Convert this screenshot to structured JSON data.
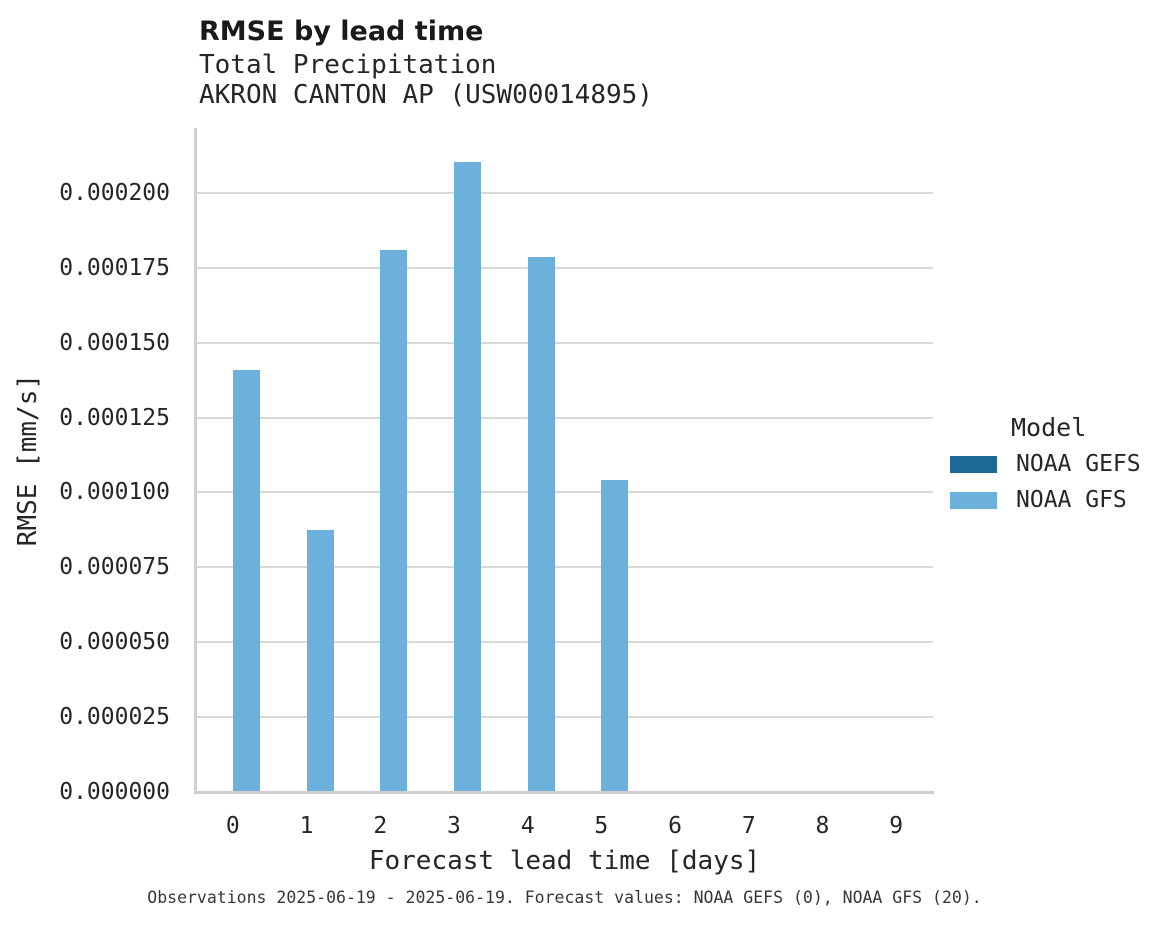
{
  "chart_data": {
    "type": "bar",
    "title": "RMSE by lead time",
    "subtitle": "Total Precipitation",
    "station": "AKRON CANTON AP (USW00014895)",
    "xlabel": "Forecast lead time [days]",
    "ylabel": "RMSE [mm/s]",
    "categories": [
      "0",
      "1",
      "2",
      "3",
      "4",
      "5",
      "6",
      "7",
      "8",
      "9"
    ],
    "series": [
      {
        "name": "NOAA GEFS",
        "color": "#1d6996",
        "values": [
          null,
          null,
          null,
          null,
          null,
          null,
          null,
          null,
          null,
          null
        ]
      },
      {
        "name": "NOAA GFS",
        "color": "#6cb0dc",
        "values": [
          0.0001407,
          8.71e-05,
          0.0001806,
          0.0002101,
          0.0001782,
          0.0001038,
          null,
          null,
          null,
          null
        ]
      }
    ],
    "ylim": [
      0,
      0.0002217
    ],
    "yticks": [
      "0.000000",
      "0.000025",
      "0.000050",
      "0.000075",
      "0.000100",
      "0.000125",
      "0.000150",
      "0.000175",
      "0.000200"
    ],
    "legend_title": "Model",
    "legend_position": "right",
    "grid": "horizontal",
    "caption": "Observations 2025-06-19 - 2025-06-19. Forecast values: NOAA GEFS (0), NOAA GFS (20)."
  },
  "colors": {
    "gridline": "#d9d9d9",
    "axis_line": "#d0d0d0",
    "text": "#262626",
    "caption_text": "#373737",
    "background": "#ffffff"
  }
}
